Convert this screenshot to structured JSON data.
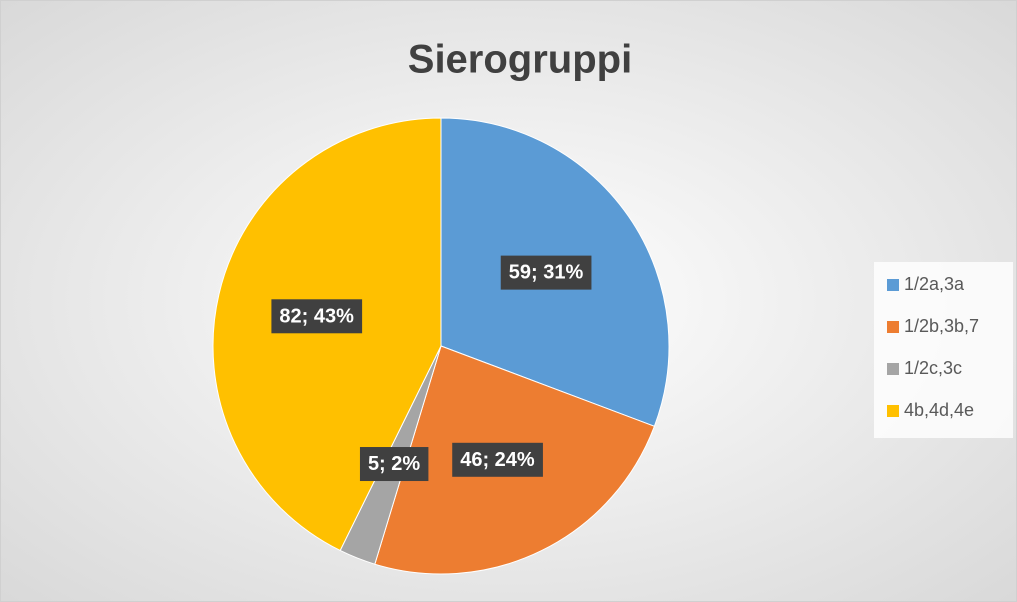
{
  "chart_data": {
    "type": "pie",
    "title": "Sierogruppi",
    "categories": [
      "1/2a,3a",
      "1/2b,3b,7",
      "1/2c,3c",
      "4b,4d,4e"
    ],
    "values": [
      59,
      46,
      5,
      82
    ],
    "value_labels": [
      "59; 31%",
      "46; 24%",
      "5; 2%",
      "82; 43%"
    ],
    "colors": [
      "#5b9bd5",
      "#ed7d31",
      "#a5a5a5",
      "#ffc000"
    ],
    "legend": "right"
  }
}
